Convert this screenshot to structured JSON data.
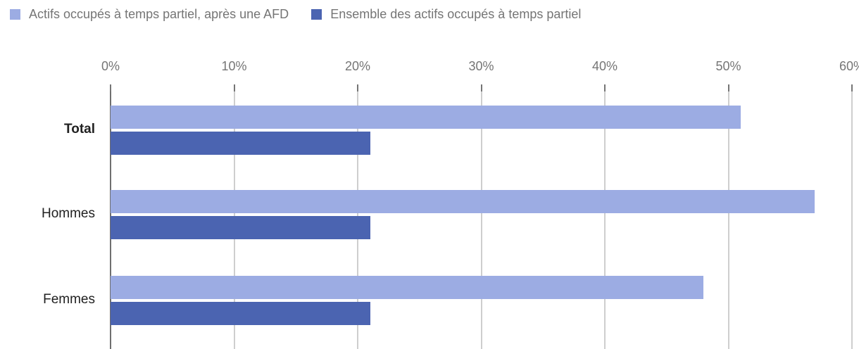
{
  "legend": {
    "items": [
      {
        "label": "Actifs occupés à temps partiel, après une AFD",
        "color": "#9cace3"
      },
      {
        "label": "Ensemble des actifs occupés à temps partiel",
        "color": "#4b64b1"
      }
    ]
  },
  "chart_data": {
    "type": "bar",
    "orientation": "horizontal",
    "title": "",
    "xlabel": "",
    "ylabel": "",
    "categories": [
      {
        "label": "Total",
        "bold": true
      },
      {
        "label": "Hommes",
        "bold": false
      },
      {
        "label": "Femmes",
        "bold": false
      }
    ],
    "series": [
      {
        "name": "Actifs occupés à temps partiel, après une AFD",
        "color": "#9cace3",
        "values": [
          51,
          57,
          48
        ]
      },
      {
        "name": "Ensemble des actifs occupés à temps partiel",
        "color": "#4b64b1",
        "values": [
          21,
          21,
          21
        ]
      }
    ],
    "x_ticks": [
      "0%",
      "10%",
      "20%",
      "30%",
      "40%",
      "50%",
      "60%"
    ],
    "xlim": [
      0,
      60
    ],
    "grid": true,
    "legend_position": "top",
    "colors": {
      "axis_text": "#757575",
      "gridline": "#9e9e9e",
      "zero_axis_line": "#6f6f6f",
      "category_text": "#212121",
      "background": "#ffffff"
    }
  }
}
